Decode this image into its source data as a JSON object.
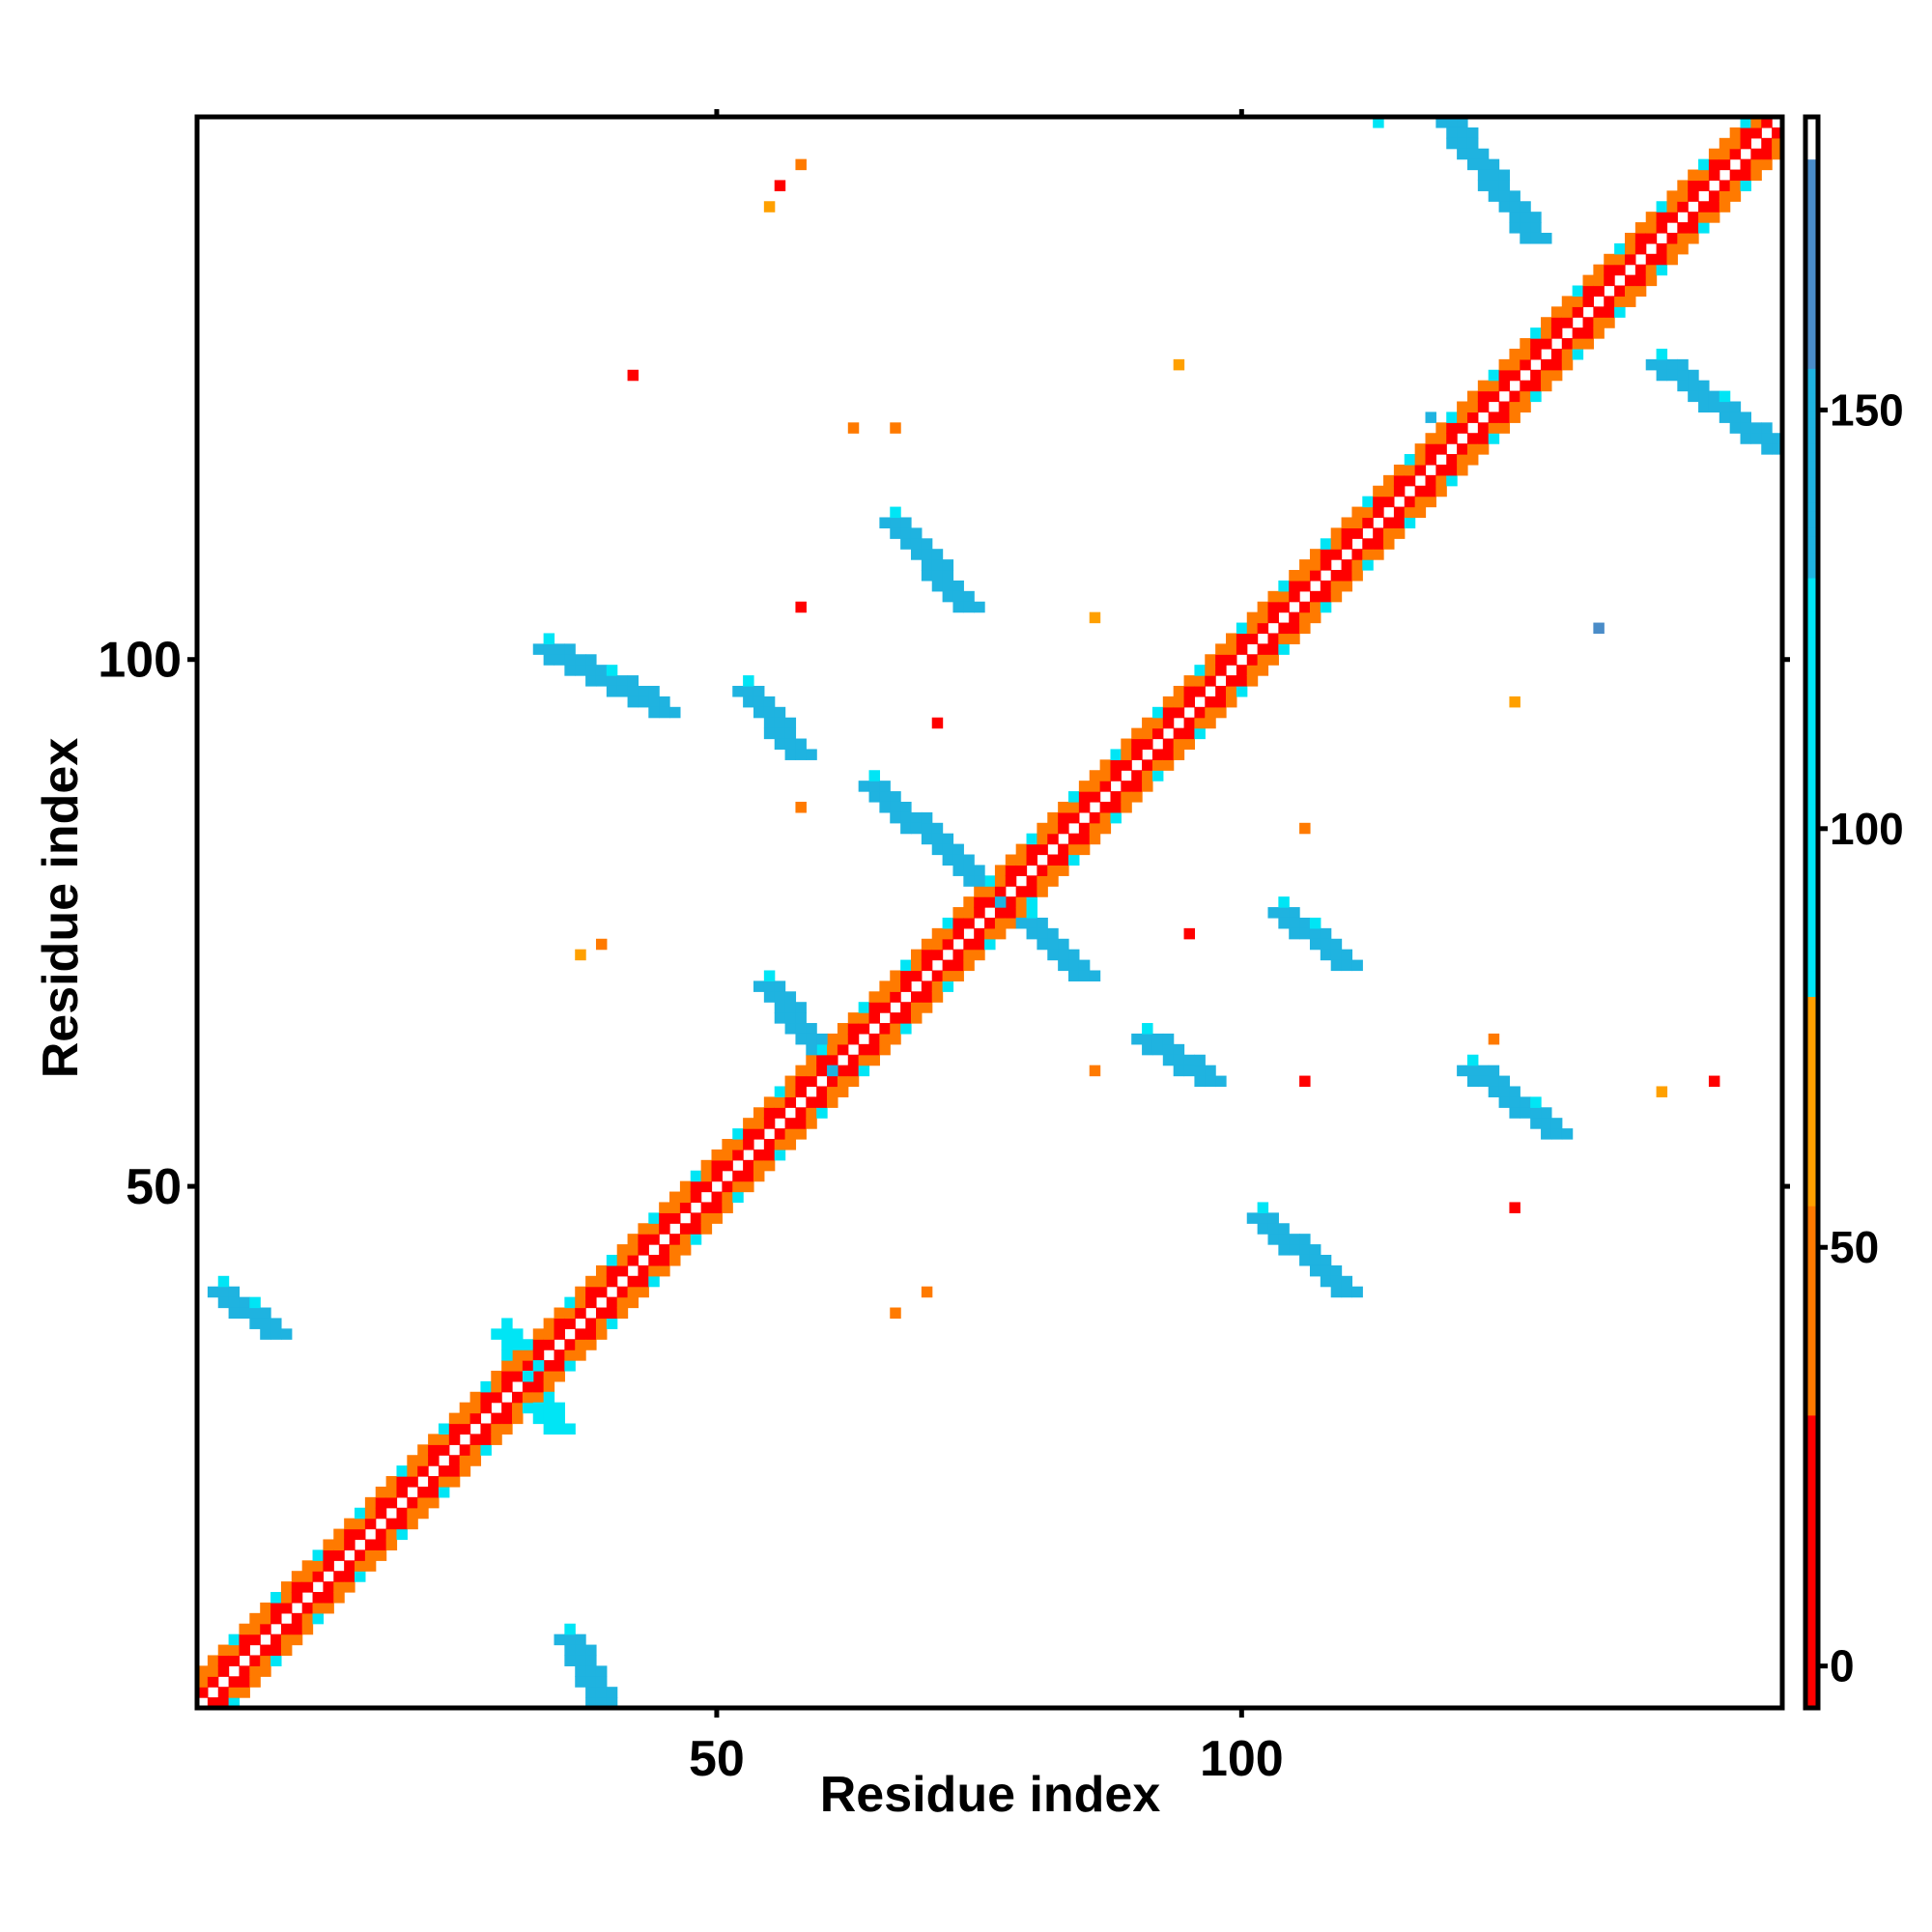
{
  "chart_data": {
    "type": "heatmap",
    "title": "",
    "xlabel": "Residue index",
    "ylabel": "Residue index",
    "xlim": [
      1,
      151
    ],
    "ylim": [
      1,
      151
    ],
    "x_ticks": [
      50,
      100
    ],
    "y_ticks": [
      50,
      100
    ],
    "colorbar": {
      "range": [
        -5,
        185
      ],
      "ticks": [
        0,
        50,
        100,
        150
      ],
      "bands": [
        {
          "from": -5,
          "to": 30,
          "color": "#ff0000"
        },
        {
          "from": 30,
          "to": 80,
          "color": "#ff8000"
        },
        {
          "from": 80,
          "to": 180,
          "color": "#00ffff"
        },
        {
          "from": 180,
          "to": 185,
          "color": "#ffffff"
        }
      ]
    },
    "palette": {
      "red": "#ff0000",
      "orange": "#ff7a00",
      "amber": "#ffa000",
      "cyan": "#00e5f5",
      "light_blue": "#1fb3e0",
      "steel_blue": "#4a8cc8"
    },
    "cells": {
      "diagonal": {
        "from": 1,
        "to": 151,
        "description": "band of contacts |i-j| <= 3"
      },
      "segments": [
        {
          "x": [
            36,
            39
          ],
          "y": [
            1,
            7
          ],
          "value": 150
        },
        {
          "x": [
            3,
            8
          ],
          "y": [
            36,
            40
          ],
          "value": 150
        },
        {
          "x": [
            55,
            61
          ],
          "y": [
            61,
            69
          ],
          "value": 150
        },
        {
          "x": [
            34,
            45
          ],
          "y": [
            95,
            101
          ],
          "value": 150
        },
        {
          "x": [
            67,
            74
          ],
          "y": [
            105,
            113
          ],
          "value": 150
        },
        {
          "x": [
            53,
            58
          ],
          "y": [
            91,
            97
          ],
          "value": 150
        },
        {
          "x": [
            65,
            85
          ],
          "y": [
            70,
            88
          ],
          "value": 150
        },
        {
          "x": [
            91,
            97
          ],
          "y": [
            60,
            64
          ],
          "value": 150
        },
        {
          "x": [
            104,
            110
          ],
          "y": [
            71,
            76
          ],
          "value": 150
        },
        {
          "x": [
            102,
            110
          ],
          "y": [
            40,
            47
          ],
          "value": 150
        },
        {
          "x": [
            122,
            130
          ],
          "y": [
            55,
            61
          ],
          "value": 150
        },
        {
          "x": [
            120,
            128
          ],
          "y": [
            140,
            151
          ],
          "value": 150
        },
        {
          "x": [
            140,
            151
          ],
          "y": [
            120,
            128
          ],
          "value": 150
        },
        {
          "x": [
            30,
            35
          ],
          "y": [
            27,
            36
          ],
          "value": 100
        }
      ],
      "scattered": [
        {
          "x": 58,
          "y": 147,
          "value": 40
        },
        {
          "x": 56,
          "y": 145,
          "value": 10
        },
        {
          "x": 55,
          "y": 143,
          "value": 60
        },
        {
          "x": 42,
          "y": 127,
          "value": 10
        },
        {
          "x": 63,
          "y": 122,
          "value": 50
        },
        {
          "x": 67,
          "y": 122,
          "value": 50
        },
        {
          "x": 94,
          "y": 128,
          "value": 60
        },
        {
          "x": 86,
          "y": 104,
          "value": 60
        },
        {
          "x": 58,
          "y": 105,
          "value": 10
        },
        {
          "x": 71,
          "y": 94,
          "value": 10
        },
        {
          "x": 58,
          "y": 86,
          "value": 50
        },
        {
          "x": 106,
          "y": 84,
          "value": 50
        },
        {
          "x": 95,
          "y": 74,
          "value": 10
        },
        {
          "x": 37,
          "y": 72,
          "value": 60
        },
        {
          "x": 39,
          "y": 73,
          "value": 50
        },
        {
          "x": 86,
          "y": 61,
          "value": 50
        },
        {
          "x": 106,
          "y": 60,
          "value": 10
        },
        {
          "x": 124,
          "y": 64,
          "value": 50
        },
        {
          "x": 140,
          "y": 59,
          "value": 60
        },
        {
          "x": 145,
          "y": 60,
          "value": 20
        },
        {
          "x": 126,
          "y": 48,
          "value": 10
        },
        {
          "x": 67,
          "y": 38,
          "value": 50
        },
        {
          "x": 70,
          "y": 40,
          "value": 40
        },
        {
          "x": 113,
          "y": 151,
          "value": 100
        },
        {
          "x": 134,
          "y": 103,
          "value": 160
        },
        {
          "x": 126,
          "y": 96,
          "value": 60
        },
        {
          "x": 118,
          "y": 123,
          "value": 150
        }
      ]
    }
  }
}
